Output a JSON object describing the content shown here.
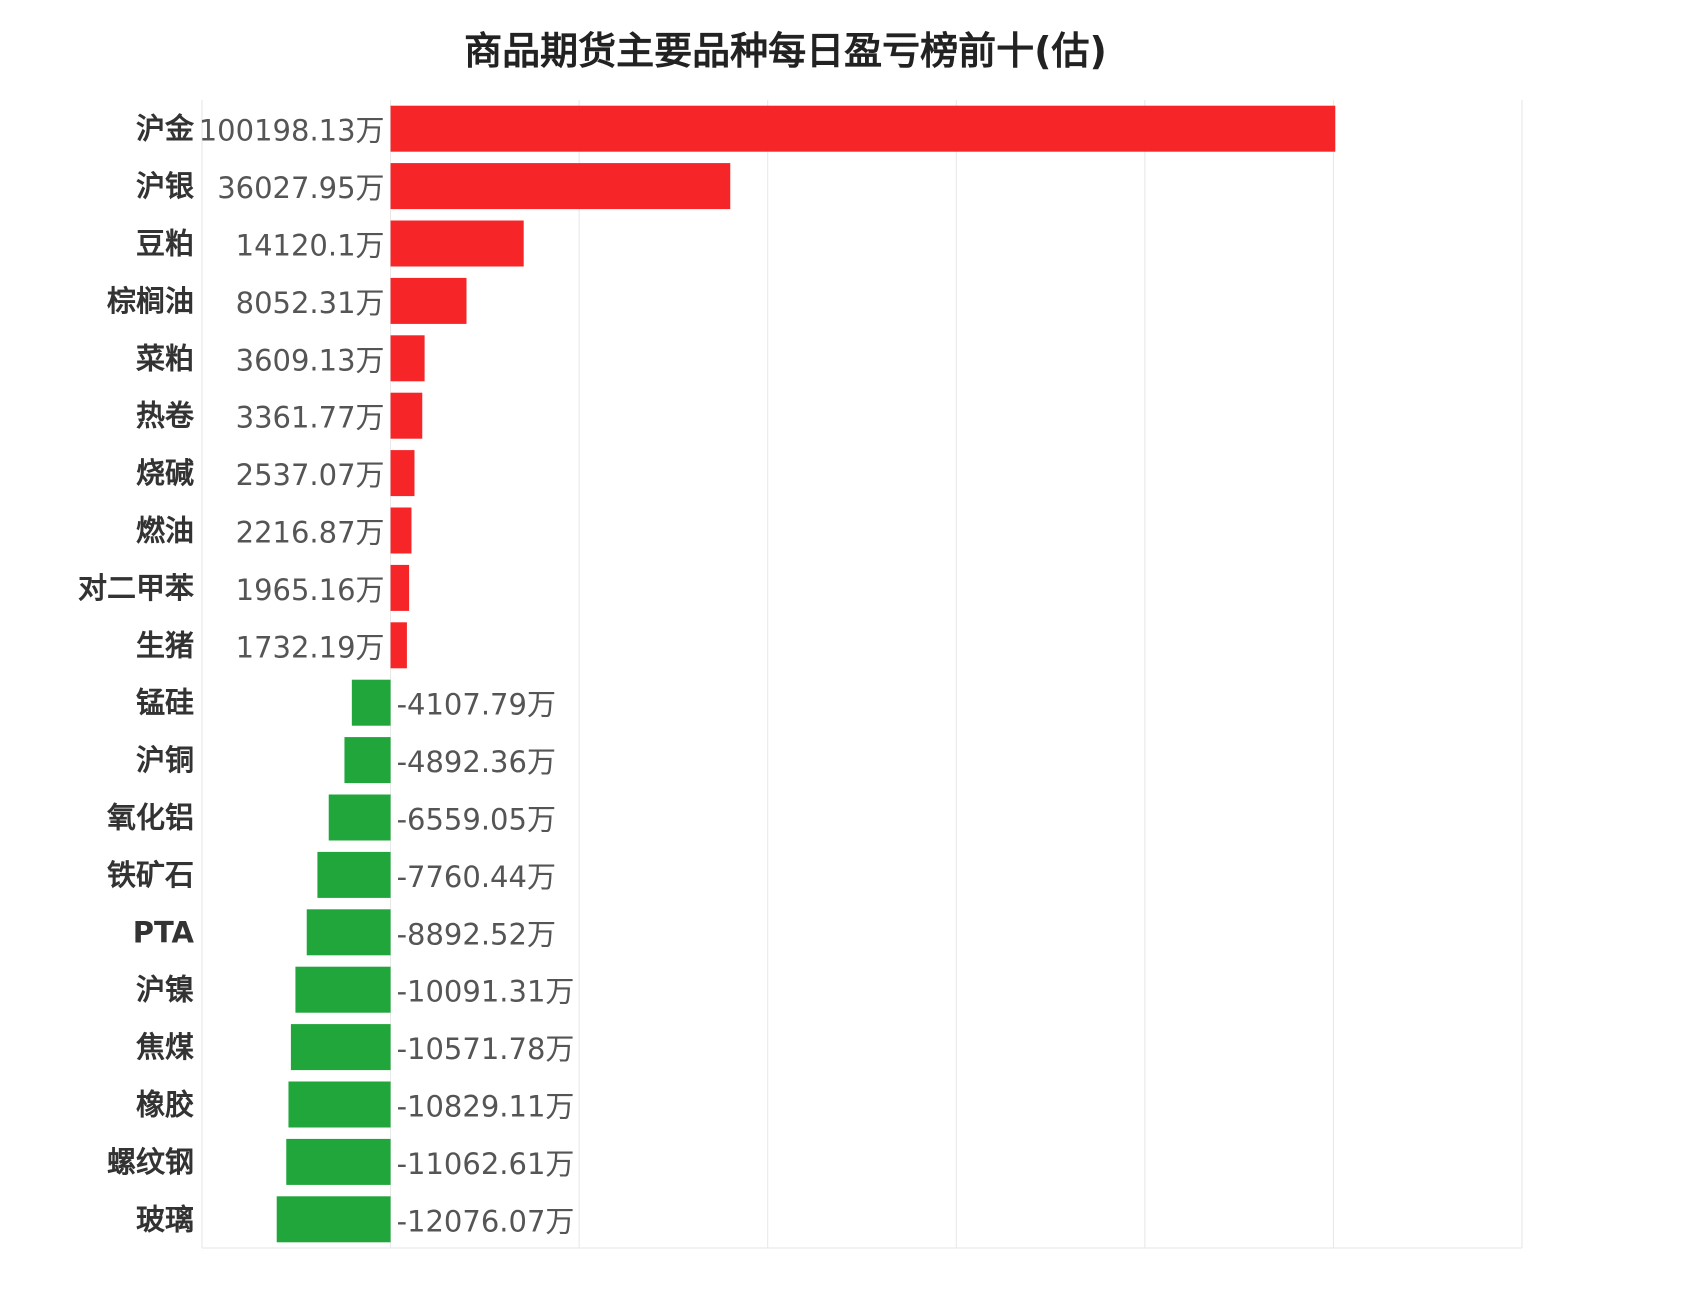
{
  "chart_data": {
    "type": "bar",
    "orientation": "horizontal",
    "title": "商品期货主要品种每日盈亏榜前十(估)",
    "unit": "万",
    "categories": [
      "沪金",
      "沪银",
      "豆粕",
      "棕榈油",
      "菜粕",
      "热卷",
      "烧碱",
      "燃油",
      "对二甲苯",
      "生猪",
      "锰硅",
      "沪铜",
      "氧化铝",
      "铁矿石",
      "PTA",
      "沪镍",
      "焦煤",
      "橡胶",
      "螺纹钢",
      "玻璃"
    ],
    "values": [
      100198.13,
      36027.95,
      14120.1,
      8052.31,
      3609.13,
      3361.77,
      2537.07,
      2216.87,
      1965.16,
      1732.19,
      -4107.79,
      -4892.36,
      -6559.05,
      -7760.44,
      -8892.52,
      -10091.31,
      -10571.78,
      -10829.11,
      -11062.61,
      -12076.07
    ],
    "value_labels": [
      "100198.13万",
      "36027.95万",
      "14120.1万",
      "8052.31万",
      "3609.13万",
      "3361.77万",
      "2537.07万",
      "2216.87万",
      "1965.16万",
      "1732.19万",
      "-4107.79万",
      "-4892.36万",
      "-6559.05万",
      "-7760.44万",
      "-8892.52万",
      "-10091.31万",
      "-10571.78万",
      "-10829.11万",
      "-11062.61万",
      "-12076.07万"
    ],
    "xlim": [
      -20000,
      120000
    ],
    "grid": true,
    "colors": {
      "positive": "#f62528",
      "negative": "#21a63b",
      "grid": "#e6e6e6"
    }
  }
}
